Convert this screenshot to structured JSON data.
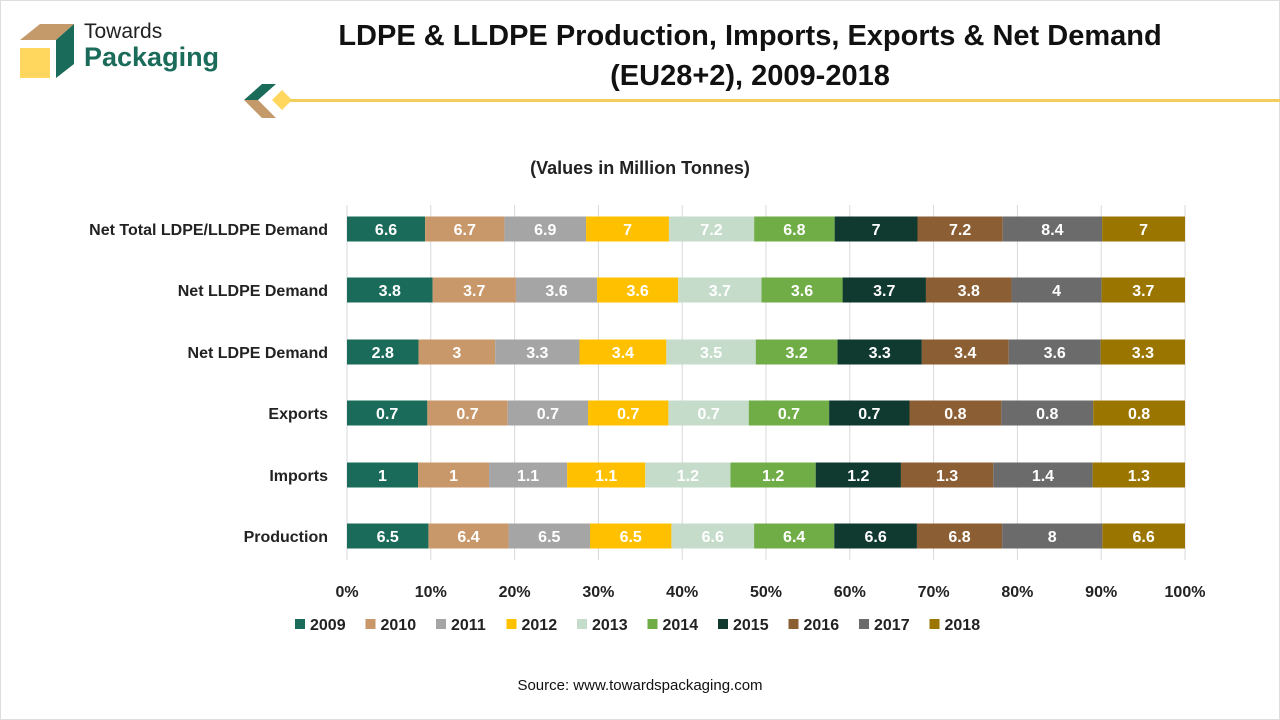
{
  "brand": {
    "line1": "Towards",
    "line2": "Packaging"
  },
  "title": {
    "line1": "LDPE & LLDPE Production, Imports, Exports & Net Demand",
    "line2": "(EU28+2), 2009-2018"
  },
  "source": "Source: www.towardspackaging.com",
  "chart_data": {
    "type": "bar",
    "orientation": "horizontal",
    "stacking": "100% stacked",
    "subtitle": "(Values in Million Tonnes)",
    "categories": [
      "Net Total LDPE/LLDPE Demand",
      "Net LLDPE Demand",
      "Net LDPE Demand",
      "Exports",
      "Imports",
      "Production"
    ],
    "series": [
      {
        "name": "2009",
        "color": "#1a6b5a",
        "values": [
          6.6,
          3.8,
          2.8,
          0.7,
          1,
          6.5
        ]
      },
      {
        "name": "2010",
        "color": "#c9986a",
        "values": [
          6.7,
          3.7,
          3,
          0.7,
          1,
          6.4
        ]
      },
      {
        "name": "2011",
        "color": "#a5a5a5",
        "values": [
          6.9,
          3.6,
          3.3,
          0.7,
          1.1,
          6.5
        ]
      },
      {
        "name": "2012",
        "color": "#ffc000",
        "values": [
          7,
          3.6,
          3.4,
          0.7,
          1.1,
          6.5
        ]
      },
      {
        "name": "2013",
        "color": "#c5dccb",
        "values": [
          7.2,
          3.7,
          3.5,
          0.7,
          1.2,
          6.6
        ]
      },
      {
        "name": "2014",
        "color": "#70ad47",
        "values": [
          6.8,
          3.6,
          3.2,
          0.7,
          1.2,
          6.4
        ]
      },
      {
        "name": "2015",
        "color": "#10392f",
        "values": [
          7,
          3.7,
          3.3,
          0.7,
          1.2,
          6.6
        ]
      },
      {
        "name": "2016",
        "color": "#8b5e34",
        "values": [
          7.2,
          3.8,
          3.4,
          0.8,
          1.3,
          6.8
        ]
      },
      {
        "name": "2017",
        "color": "#6b6b6b",
        "values": [
          8.4,
          4,
          3.6,
          0.8,
          1.4,
          8
        ]
      },
      {
        "name": "2018",
        "color": "#9a7500",
        "values": [
          7,
          3.7,
          3.3,
          0.8,
          1.3,
          6.6
        ]
      }
    ],
    "xticks": [
      "0%",
      "10%",
      "20%",
      "30%",
      "40%",
      "50%",
      "60%",
      "70%",
      "80%",
      "90%",
      "100%"
    ],
    "xlim": [
      0,
      100
    ],
    "grid": true,
    "legend": "bottom"
  }
}
